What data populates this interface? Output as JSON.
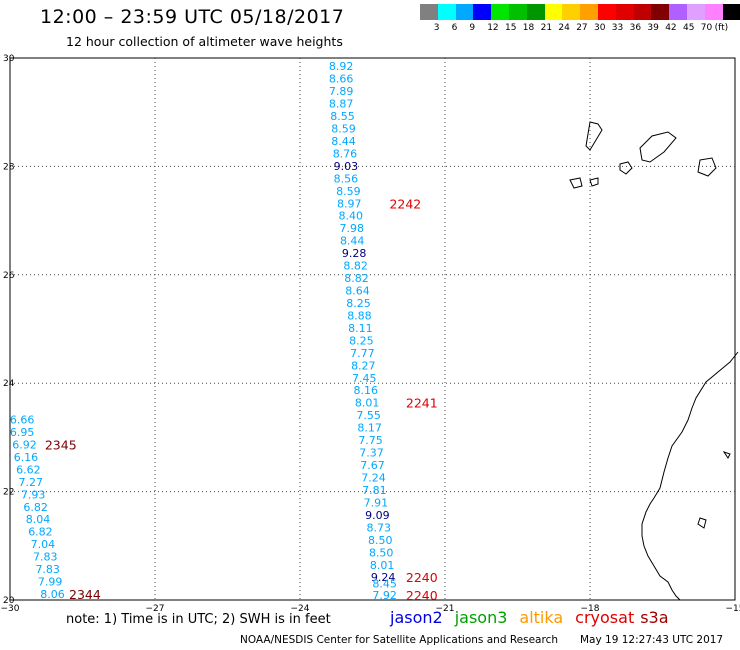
{
  "header": {
    "title": "12:00 – 23:59 UTC 05/18/2017",
    "subtitle": "12 hour collection of altimeter wave heights"
  },
  "legend": {
    "colors": [
      "#808080",
      "#00ffff",
      "#00a8ff",
      "#0000ff",
      "#00e600",
      "#00c000",
      "#009600",
      "#ffff00",
      "#ffd000",
      "#ffa000",
      "#ff0000",
      "#e00000",
      "#c00000",
      "#800000",
      "#b060ff",
      "#e0a0ff",
      "#ff80ff",
      "#000000"
    ],
    "labels": [
      "3",
      "6",
      "9",
      "12",
      "15",
      "18",
      "21",
      "24",
      "27",
      "30",
      "33",
      "36",
      "39",
      "42",
      "45",
      "70",
      "(ft)"
    ]
  },
  "map": {
    "x_ticks": [
      "−30",
      "−27",
      "−24",
      "−21",
      "−18",
      "−15"
    ],
    "y_ticks": [
      "30",
      "28",
      "26",
      "24",
      "22",
      "20"
    ],
    "color_cyan": "#00a8ff",
    "color_blue": "#000080",
    "track_main": [
      {
        "lon": -23.15,
        "lat": 29.85,
        "v": "8.92",
        "c": "c"
      },
      {
        "lon": -23.15,
        "lat": 29.62,
        "v": "8.66",
        "c": "c"
      },
      {
        "lon": -23.15,
        "lat": 29.39,
        "v": "7.89",
        "c": "c"
      },
      {
        "lon": -23.15,
        "lat": 29.16,
        "v": "8.87",
        "c": "c"
      },
      {
        "lon": -23.12,
        "lat": 28.93,
        "v": "8.55",
        "c": "c"
      },
      {
        "lon": -23.1,
        "lat": 28.7,
        "v": "8.59",
        "c": "c"
      },
      {
        "lon": -23.1,
        "lat": 28.47,
        "v": "8.44",
        "c": "c"
      },
      {
        "lon": -23.07,
        "lat": 28.24,
        "v": "8.76",
        "c": "c"
      },
      {
        "lon": -23.05,
        "lat": 28.01,
        "v": "9.03",
        "c": "b"
      },
      {
        "lon": -23.05,
        "lat": 27.78,
        "v": "8.56",
        "c": "c"
      },
      {
        "lon": -23.0,
        "lat": 27.55,
        "v": "8.59",
        "c": "c"
      },
      {
        "lon": -22.98,
        "lat": 27.32,
        "v": "8.97",
        "c": "c"
      },
      {
        "lon": -22.95,
        "lat": 27.09,
        "v": "8.40",
        "c": "c"
      },
      {
        "lon": -22.93,
        "lat": 26.86,
        "v": "7.98",
        "c": "c"
      },
      {
        "lon": -22.92,
        "lat": 26.63,
        "v": "8.44",
        "c": "c"
      },
      {
        "lon": -22.88,
        "lat": 26.4,
        "v": "9.28",
        "c": "b"
      },
      {
        "lon": -22.85,
        "lat": 26.17,
        "v": "8.82",
        "c": "c"
      },
      {
        "lon": -22.83,
        "lat": 25.94,
        "v": "8.82",
        "c": "c"
      },
      {
        "lon": -22.81,
        "lat": 25.71,
        "v": "8.64",
        "c": "c"
      },
      {
        "lon": -22.79,
        "lat": 25.48,
        "v": "8.25",
        "c": "c"
      },
      {
        "lon": -22.77,
        "lat": 25.25,
        "v": "8.88",
        "c": "c"
      },
      {
        "lon": -22.75,
        "lat": 25.02,
        "v": "8.11",
        "c": "c"
      },
      {
        "lon": -22.73,
        "lat": 24.79,
        "v": "8.25",
        "c": "c"
      },
      {
        "lon": -22.71,
        "lat": 24.56,
        "v": "7.77",
        "c": "c"
      },
      {
        "lon": -22.69,
        "lat": 24.33,
        "v": "8.27",
        "c": "c"
      },
      {
        "lon": -22.67,
        "lat": 24.1,
        "v": "7.45",
        "c": "c"
      },
      {
        "lon": -22.64,
        "lat": 23.87,
        "v": "8.16",
        "c": "c"
      },
      {
        "lon": -22.61,
        "lat": 23.64,
        "v": "8.01",
        "c": "c"
      },
      {
        "lon": -22.58,
        "lat": 23.41,
        "v": "7.55",
        "c": "c"
      },
      {
        "lon": -22.56,
        "lat": 23.18,
        "v": "8.17",
        "c": "c"
      },
      {
        "lon": -22.54,
        "lat": 22.95,
        "v": "7.75",
        "c": "c"
      },
      {
        "lon": -22.52,
        "lat": 22.72,
        "v": "7.37",
        "c": "c"
      },
      {
        "lon": -22.5,
        "lat": 22.49,
        "v": "7.67",
        "c": "c"
      },
      {
        "lon": -22.48,
        "lat": 22.26,
        "v": "7.24",
        "c": "c"
      },
      {
        "lon": -22.46,
        "lat": 22.03,
        "v": "7.81",
        "c": "c"
      },
      {
        "lon": -22.43,
        "lat": 21.8,
        "v": "7.91",
        "c": "c"
      },
      {
        "lon": -22.4,
        "lat": 21.57,
        "v": "9.09",
        "c": "b"
      },
      {
        "lon": -22.37,
        "lat": 21.34,
        "v": "8.73",
        "c": "c"
      },
      {
        "lon": -22.34,
        "lat": 21.11,
        "v": "8.50",
        "c": "c"
      },
      {
        "lon": -22.32,
        "lat": 20.88,
        "v": "8.50",
        "c": "c"
      },
      {
        "lon": -22.3,
        "lat": 20.65,
        "v": "8.01",
        "c": "c"
      },
      {
        "lon": -22.28,
        "lat": 20.42,
        "v": "9.24",
        "c": "b"
      },
      {
        "lon": -22.25,
        "lat": 20.3,
        "v": "8.45",
        "c": "c"
      },
      {
        "lon": -22.25,
        "lat": 20.09,
        "v": "7.92",
        "c": "c"
      }
    ],
    "track_west": [
      {
        "lon": -29.75,
        "lat": 23.33,
        "v": "6.66",
        "c": "c"
      },
      {
        "lon": -29.75,
        "lat": 23.1,
        "v": "6.95",
        "c": "c"
      },
      {
        "lon": -29.7,
        "lat": 22.87,
        "v": "6.92",
        "c": "c"
      },
      {
        "lon": -29.67,
        "lat": 22.64,
        "v": "6.16",
        "c": "c"
      },
      {
        "lon": -29.62,
        "lat": 22.41,
        "v": "6.62",
        "c": "c"
      },
      {
        "lon": -29.57,
        "lat": 22.18,
        "v": "7.27",
        "c": "c"
      },
      {
        "lon": -29.52,
        "lat": 21.95,
        "v": "7.93",
        "c": "c"
      },
      {
        "lon": -29.47,
        "lat": 21.72,
        "v": "6.82",
        "c": "c"
      },
      {
        "lon": -29.42,
        "lat": 21.49,
        "v": "8.04",
        "c": "c"
      },
      {
        "lon": -29.37,
        "lat": 21.26,
        "v": "6.82",
        "c": "c"
      },
      {
        "lon": -29.32,
        "lat": 21.03,
        "v": "7.04",
        "c": "c"
      },
      {
        "lon": -29.27,
        "lat": 20.8,
        "v": "7.83",
        "c": "c"
      },
      {
        "lon": -29.22,
        "lat": 20.57,
        "v": "7.83",
        "c": "c"
      },
      {
        "lon": -29.17,
        "lat": 20.34,
        "v": "7.99",
        "c": "c"
      },
      {
        "lon": -29.12,
        "lat": 20.11,
        "v": "8.06",
        "c": "c"
      }
    ],
    "pass_ids": [
      {
        "lon": -21.82,
        "lat": 27.32,
        "text": "2242",
        "color": "#e00000"
      },
      {
        "lon": -21.48,
        "lat": 23.64,
        "text": "2241",
        "color": "#e00000"
      },
      {
        "lon": -21.48,
        "lat": 20.42,
        "text": "2240",
        "color": "#e00000"
      },
      {
        "lon": -21.48,
        "lat": 20.09,
        "text": "2240",
        "color": "#e00000"
      },
      {
        "lon": -28.95,
        "lat": 22.87,
        "text": "2345",
        "color": "#7a0000"
      },
      {
        "lon": -28.45,
        "lat": 20.11,
        "text": "2344",
        "color": "#7a0000"
      }
    ]
  },
  "note": "note: 1) Time is in UTC; 2) SWH is in feet",
  "satellites": [
    {
      "name": "jason2",
      "color": "#0000e0"
    },
    {
      "name": "jason3",
      "color": "#00a000"
    },
    {
      "name": "altika",
      "color": "#ff9900"
    },
    {
      "name": "cryosat",
      "color": "#e00000"
    },
    {
      "name": "s3a",
      "color": "#a00000"
    }
  ],
  "footer": {
    "org": "NOAA/NESDIS Center for Satellite Applications and Research",
    "timestamp": "May 19 12:27:43 UTC 2017"
  }
}
